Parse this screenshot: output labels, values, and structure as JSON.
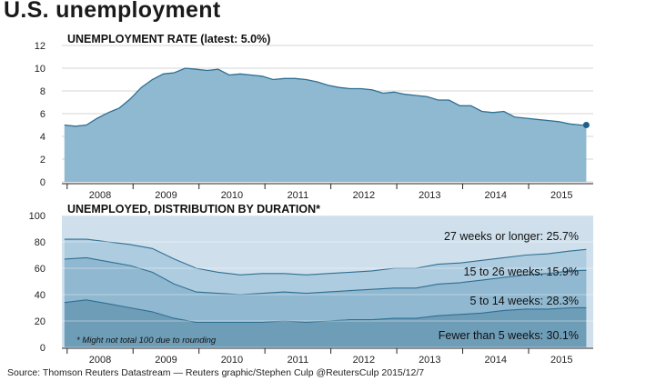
{
  "header": {
    "title": "U.S. unemployment",
    "source": "Source: Thomson Reuters Datastream — Reuters graphic/Stephen Culp @ReutersCulp 2015/12/7"
  },
  "colors": {
    "panel_bg": "#cfe0ec",
    "area_main": "#8fb9d1",
    "line_main": "#2f6f93",
    "layer_27plus": "#cfe0ec",
    "layer_15to26": "#aecce0",
    "layer_5to14": "#90b8d0",
    "layer_lt5": "#6e9db8",
    "endpoint": "#1e5f8a"
  },
  "chart_data": [
    {
      "type": "area",
      "title": "UNEMPLOYMENT RATE (latest: 5.0%)",
      "xlabel": "",
      "ylabel": "",
      "x_tick_labels": [
        "2008",
        "2009",
        "2010",
        "2011",
        "2012",
        "2013",
        "2014",
        "2015"
      ],
      "ylim": [
        0,
        12
      ],
      "y_ticks": [
        0,
        2,
        4,
        6,
        8,
        10,
        12
      ],
      "grid": true,
      "series": [
        {
          "x": [
            "2007-12",
            "2008-02",
            "2008-04",
            "2008-06",
            "2008-08",
            "2008-10",
            "2008-12",
            "2009-02",
            "2009-04",
            "2009-06",
            "2009-08",
            "2009-10",
            "2009-12",
            "2010-02",
            "2010-04",
            "2010-06",
            "2010-08",
            "2010-10",
            "2010-12",
            "2011-02",
            "2011-04",
            "2011-06",
            "2011-08",
            "2011-10",
            "2011-12",
            "2012-02",
            "2012-04",
            "2012-06",
            "2012-08",
            "2012-10",
            "2012-12",
            "2013-02",
            "2013-04",
            "2013-06",
            "2013-08",
            "2013-10",
            "2013-12",
            "2014-02",
            "2014-04",
            "2014-06",
            "2014-08",
            "2014-10",
            "2014-12",
            "2015-02",
            "2015-04",
            "2015-06",
            "2015-08",
            "2015-10",
            "2015-11"
          ],
          "values": [
            5.0,
            4.9,
            5.0,
            5.6,
            6.1,
            6.5,
            7.3,
            8.3,
            9.0,
            9.5,
            9.6,
            10.0,
            9.9,
            9.8,
            9.9,
            9.4,
            9.5,
            9.4,
            9.3,
            9.0,
            9.1,
            9.1,
            9.0,
            8.8,
            8.5,
            8.3,
            8.2,
            8.2,
            8.1,
            7.8,
            7.9,
            7.7,
            7.6,
            7.5,
            7.2,
            7.2,
            6.7,
            6.7,
            6.2,
            6.1,
            6.2,
            5.7,
            5.6,
            5.5,
            5.4,
            5.3,
            5.1,
            5.0,
            5.0
          ]
        }
      ],
      "latest_marker": {
        "x": "2015-11",
        "value": 5.0
      }
    },
    {
      "type": "area",
      "title": "UNEMPLOYED, DISTRIBUTION BY DURATION*",
      "xlabel": "",
      "ylabel": "",
      "x_tick_labels": [
        "2008",
        "2009",
        "2010",
        "2011",
        "2012",
        "2013",
        "2014",
        "2015"
      ],
      "ylim": [
        0,
        100
      ],
      "y_ticks": [
        0,
        20,
        40,
        60,
        80,
        100
      ],
      "grid": true,
      "stacked": true,
      "note": "* Might not total 100 due to rounding",
      "x": [
        "2007-12",
        "2008-04",
        "2008-08",
        "2008-12",
        "2009-04",
        "2009-08",
        "2009-12",
        "2010-04",
        "2010-08",
        "2010-12",
        "2011-04",
        "2011-08",
        "2011-12",
        "2012-04",
        "2012-08",
        "2012-12",
        "2013-04",
        "2013-08",
        "2013-12",
        "2014-04",
        "2014-08",
        "2014-12",
        "2015-04",
        "2015-08",
        "2015-11"
      ],
      "series": [
        {
          "name": "Fewer than 5 weeks",
          "label": "Fewer than 5 weeks: 30.1%",
          "values": [
            34,
            36,
            33,
            30,
            27,
            22,
            19,
            19,
            19,
            19,
            20,
            19,
            20,
            21,
            21,
            22,
            22,
            24,
            25,
            26,
            28,
            29,
            29,
            30,
            30.1
          ]
        },
        {
          "name": "5 to 14 weeks",
          "label": "5 to 14 weeks: 28.3%",
          "values": [
            33,
            32,
            32,
            32,
            30,
            26,
            23,
            22,
            21,
            22,
            22,
            22,
            22,
            22,
            23,
            23,
            23,
            24,
            24,
            25,
            25,
            26,
            27,
            28,
            28.3
          ]
        },
        {
          "name": "15 to 26 weeks",
          "label": "15 to 26 weeks: 15.9%",
          "values": [
            15,
            14,
            15,
            16,
            18,
            19,
            18,
            16,
            15,
            15,
            14,
            14,
            14,
            14,
            14,
            15,
            15,
            15,
            15,
            15,
            15,
            15,
            15,
            15,
            15.9
          ]
        },
        {
          "name": "27 weeks or longer",
          "label": "27 weeks or longer: 25.7%",
          "values": [
            18,
            18,
            20,
            22,
            25,
            33,
            40,
            43,
            45,
            44,
            44,
            45,
            44,
            43,
            42,
            40,
            40,
            37,
            36,
            34,
            32,
            30,
            29,
            27,
            25.7
          ]
        }
      ]
    }
  ]
}
